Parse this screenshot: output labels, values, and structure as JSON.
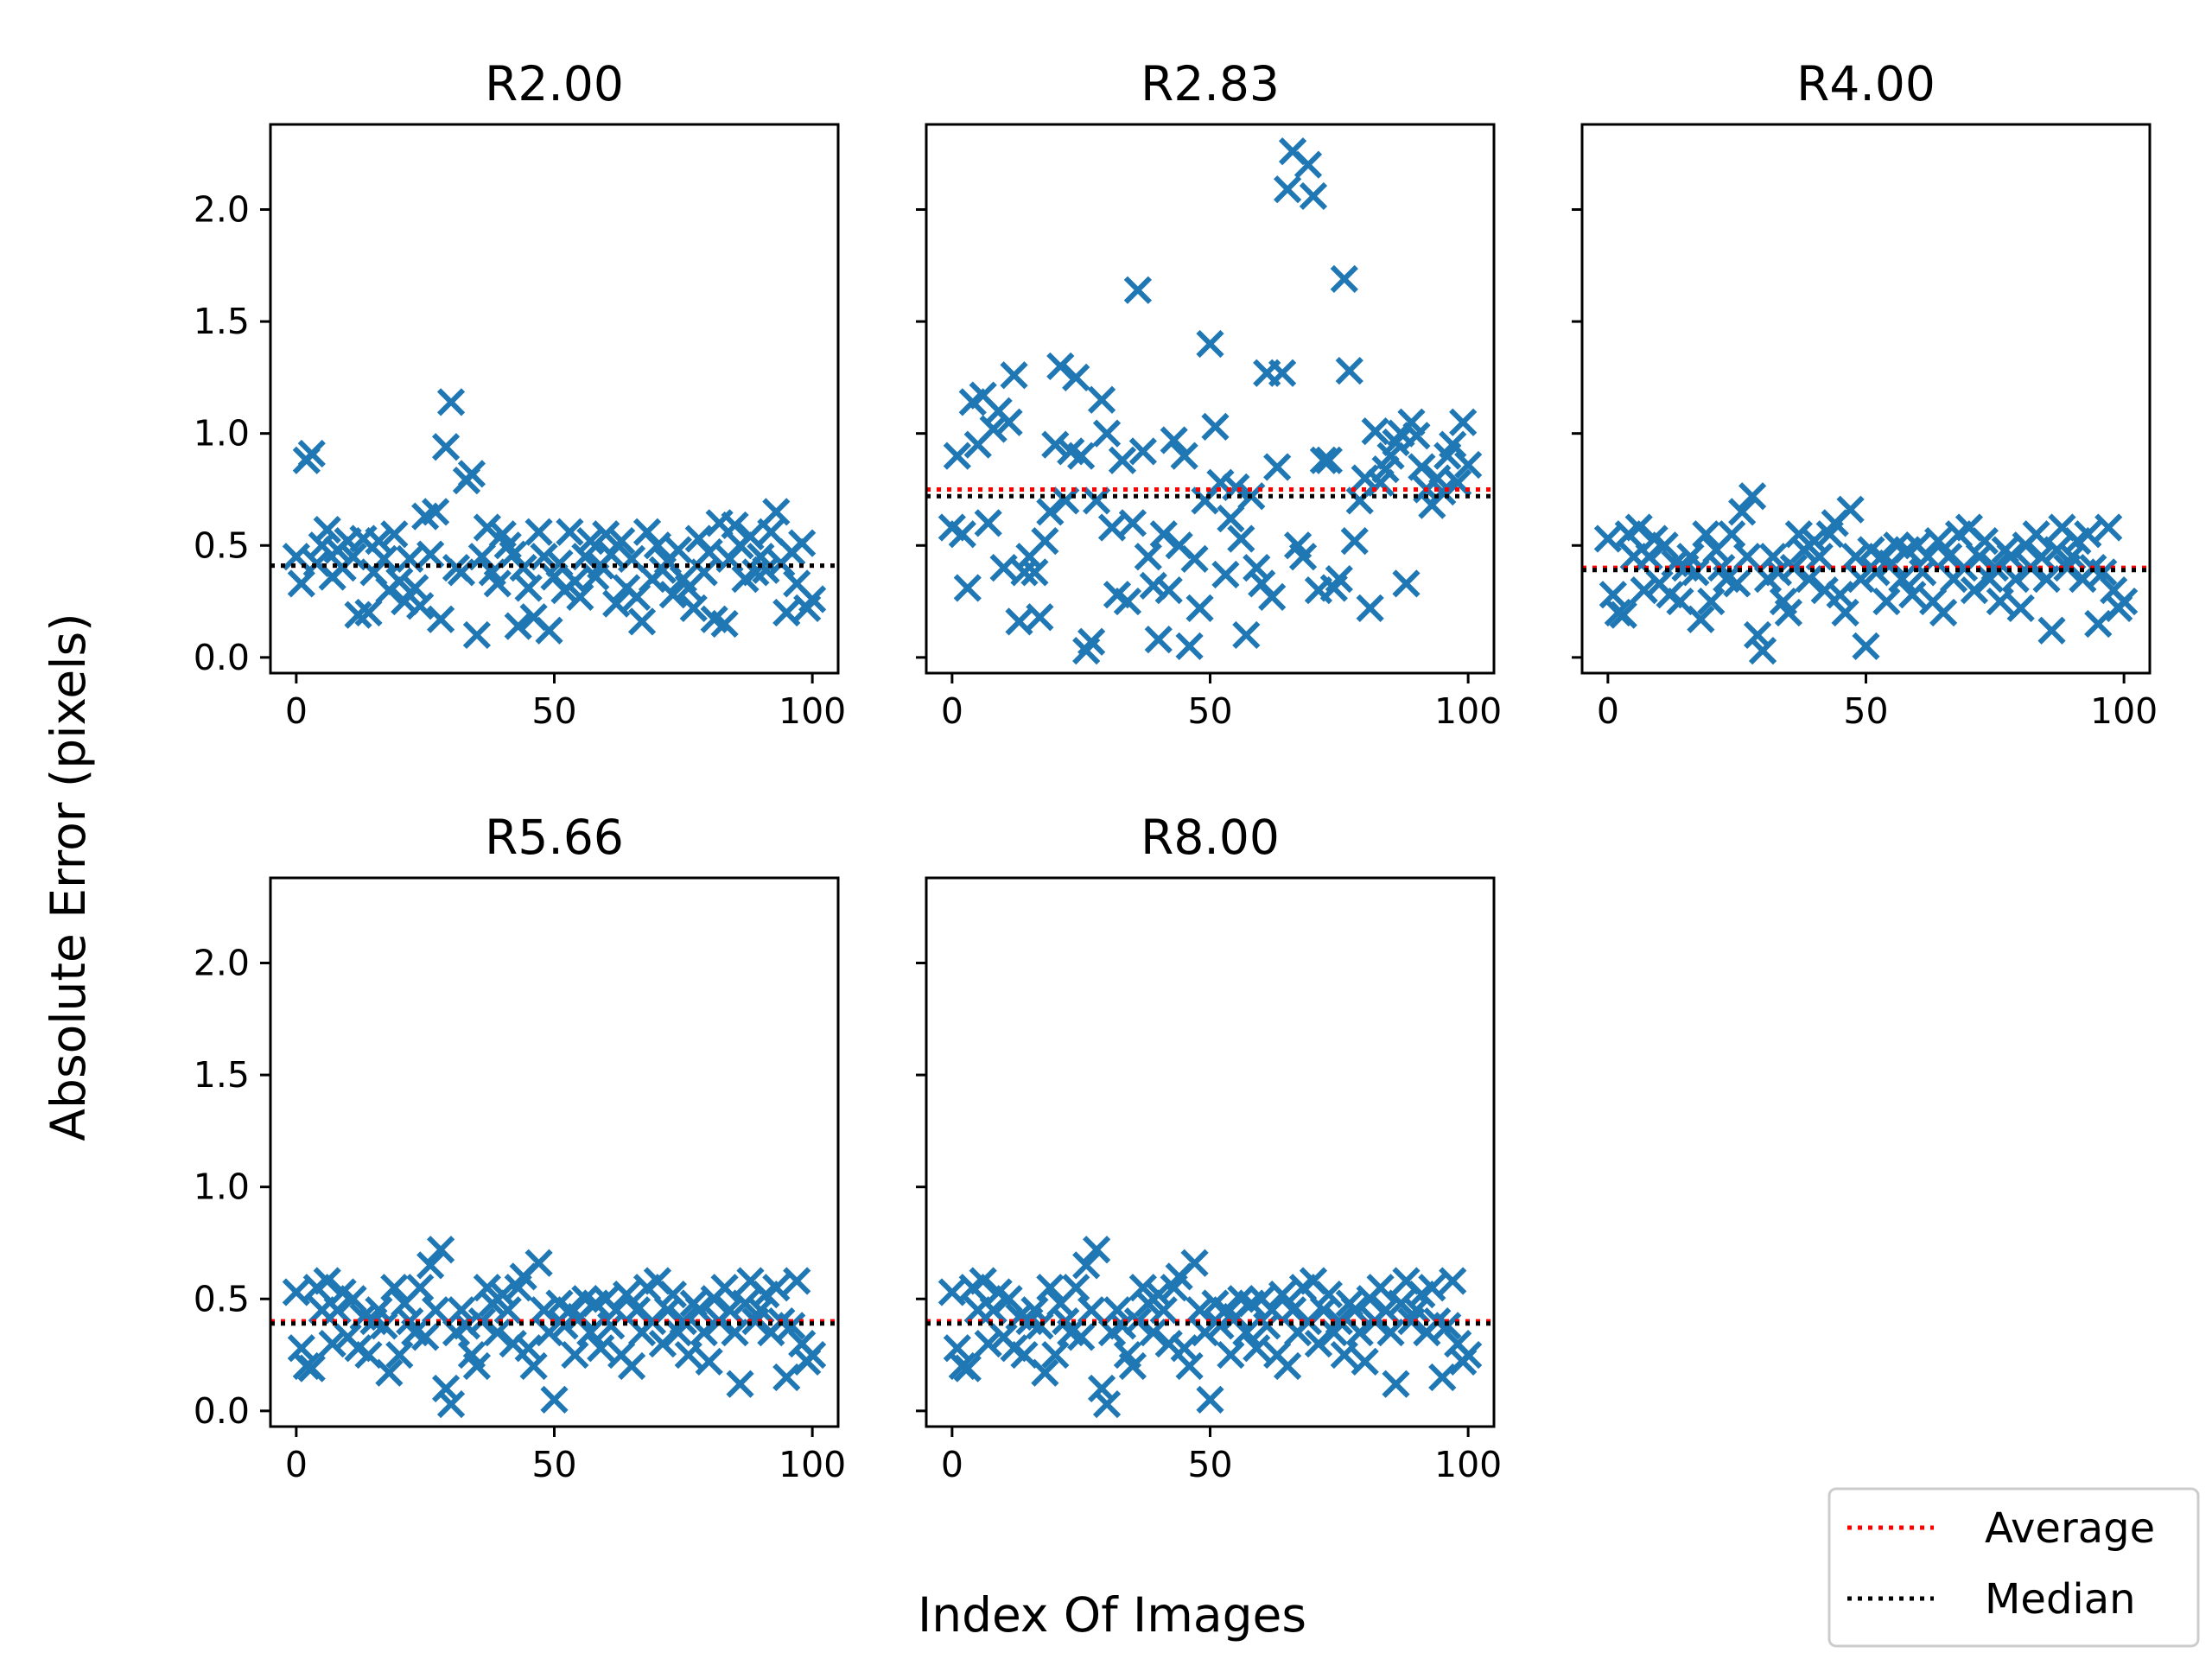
{
  "figure": {
    "xlabel": "Index Of Images",
    "ylabel": "Absolute Error (pixels)",
    "legend": {
      "placement": "bottom-right",
      "entries": [
        {
          "label": "Average",
          "color": "#ff0000",
          "style": "dotted"
        },
        {
          "label": "Median",
          "color": "#000000",
          "style": "dotted"
        }
      ]
    },
    "marker_color": "#1f77b4"
  },
  "chart_data": [
    {
      "type": "scatter",
      "title": "R2.00",
      "xlim": [
        -5,
        105
      ],
      "ylim": [
        -0.07,
        2.38
      ],
      "xticks": [
        0,
        50,
        100
      ],
      "yticks": [
        0.0,
        0.5,
        1.0,
        1.5,
        2.0
      ],
      "xtick_labels": [
        "0",
        "50",
        "100"
      ],
      "ytick_labels": [
        "0.0",
        "0.5",
        "1.0",
        "1.5",
        "2.0"
      ],
      "average": 0.41,
      "median": 0.41,
      "x": [
        0,
        1,
        2,
        3,
        4,
        5,
        6,
        7,
        8,
        9,
        10,
        11,
        12,
        13,
        14,
        15,
        16,
        17,
        18,
        19,
        20,
        21,
        22,
        23,
        24,
        25,
        26,
        27,
        28,
        29,
        30,
        31,
        32,
        33,
        34,
        35,
        36,
        37,
        38,
        39,
        40,
        41,
        42,
        43,
        44,
        45,
        46,
        47,
        48,
        49,
        50,
        51,
        52,
        53,
        54,
        55,
        56,
        57,
        58,
        59,
        60,
        61,
        62,
        63,
        64,
        65,
        66,
        67,
        68,
        69,
        70,
        71,
        72,
        73,
        74,
        75,
        76,
        77,
        78,
        79,
        80,
        81,
        82,
        83,
        84,
        85,
        86,
        87,
        88,
        89,
        90,
        91,
        92,
        93,
        94,
        95,
        96,
        97,
        98,
        99,
        100
      ],
      "y": [
        0.45,
        0.33,
        0.88,
        0.91,
        0.42,
        0.5,
        0.57,
        0.36,
        0.48,
        0.4,
        0.52,
        0.45,
        0.19,
        0.53,
        0.2,
        0.38,
        0.52,
        0.44,
        0.3,
        0.55,
        0.34,
        0.25,
        0.44,
        0.31,
        0.23,
        0.63,
        0.46,
        0.65,
        0.17,
        0.94,
        1.14,
        0.4,
        0.38,
        0.79,
        0.82,
        0.1,
        0.45,
        0.58,
        0.38,
        0.33,
        0.55,
        0.5,
        0.46,
        0.14,
        0.4,
        0.31,
        0.18,
        0.56,
        0.45,
        0.12,
        0.36,
        0.42,
        0.3,
        0.56,
        0.34,
        0.27,
        0.45,
        0.52,
        0.36,
        0.41,
        0.55,
        0.46,
        0.24,
        0.52,
        0.31,
        0.44,
        0.27,
        0.16,
        0.56,
        0.35,
        0.5,
        0.39,
        0.43,
        0.28,
        0.48,
        0.35,
        0.31,
        0.22,
        0.53,
        0.38,
        0.47,
        0.17,
        0.6,
        0.15,
        0.44,
        0.59,
        0.5,
        0.35,
        0.54,
        0.38,
        0.45,
        0.39,
        0.56,
        0.65,
        0.42,
        0.2,
        0.47,
        0.33,
        0.51,
        0.22,
        0.26
      ]
    },
    {
      "type": "scatter",
      "title": "R2.83",
      "xlim": [
        -5,
        105
      ],
      "ylim": [
        -0.07,
        2.38
      ],
      "xticks": [
        0,
        50,
        100
      ],
      "yticks": [
        0.0,
        0.5,
        1.0,
        1.5,
        2.0
      ],
      "xtick_labels": [
        "0",
        "50",
        "100"
      ],
      "ytick_labels": [],
      "average": 0.75,
      "median": 0.72,
      "x": [
        0,
        1,
        2,
        3,
        4,
        5,
        6,
        7,
        8,
        9,
        10,
        11,
        12,
        13,
        14,
        15,
        16,
        17,
        18,
        19,
        20,
        21,
        22,
        23,
        24,
        25,
        26,
        27,
        28,
        29,
        30,
        31,
        32,
        33,
        34,
        35,
        36,
        37,
        38,
        39,
        40,
        41,
        42,
        43,
        44,
        45,
        46,
        47,
        48,
        49,
        50,
        51,
        52,
        53,
        54,
        55,
        56,
        57,
        58,
        59,
        60,
        61,
        62,
        63,
        64,
        65,
        66,
        67,
        68,
        69,
        70,
        71,
        72,
        73,
        74,
        75,
        76,
        77,
        78,
        79,
        80,
        81,
        82,
        83,
        84,
        85,
        86,
        87,
        88,
        89,
        90,
        91,
        92,
        93,
        94,
        95,
        96,
        97,
        98,
        99,
        100
      ],
      "y": [
        0.58,
        0.9,
        0.55,
        0.31,
        1.14,
        0.95,
        1.17,
        0.6,
        1.02,
        1.1,
        0.4,
        1.05,
        1.26,
        0.16,
        0.38,
        0.45,
        0.38,
        0.18,
        0.52,
        0.65,
        0.95,
        1.3,
        0.7,
        0.92,
        1.25,
        0.9,
        0.03,
        0.07,
        0.7,
        1.15,
        1.0,
        0.58,
        0.28,
        0.88,
        0.25,
        0.6,
        1.64,
        0.92,
        0.45,
        0.32,
        0.08,
        0.55,
        0.3,
        0.97,
        0.5,
        0.9,
        0.05,
        0.44,
        0.22,
        0.7,
        1.4,
        1.03,
        0.78,
        0.37,
        0.62,
        0.76,
        0.53,
        0.1,
        0.72,
        0.4,
        0.33,
        1.27,
        0.27,
        0.85,
        1.27,
        2.09,
        2.26,
        0.5,
        0.45,
        2.2,
        2.06,
        0.3,
        0.88,
        0.88,
        0.31,
        0.35,
        1.69,
        1.28,
        0.52,
        0.7,
        0.8,
        0.22,
        1.01,
        0.78,
        0.84,
        0.9,
        0.96,
        1.0,
        0.33,
        1.05,
        0.99,
        0.85,
        0.75,
        0.68,
        0.8,
        0.74,
        0.9,
        0.95,
        0.78,
        1.05,
        0.86
      ]
    },
    {
      "type": "scatter",
      "title": "R4.00",
      "xlim": [
        -5,
        105
      ],
      "ylim": [
        -0.07,
        2.38
      ],
      "xticks": [
        0,
        50,
        100
      ],
      "yticks": [
        0.0,
        0.5,
        1.0,
        1.5,
        2.0
      ],
      "xtick_labels": [
        "0",
        "50",
        "100"
      ],
      "ytick_labels": [],
      "average": 0.4,
      "median": 0.39,
      "x": [
        0,
        1,
        2,
        3,
        4,
        5,
        6,
        7,
        8,
        9,
        10,
        11,
        12,
        13,
        14,
        15,
        16,
        17,
        18,
        19,
        20,
        21,
        22,
        23,
        24,
        25,
        26,
        27,
        28,
        29,
        30,
        31,
        32,
        33,
        34,
        35,
        36,
        37,
        38,
        39,
        40,
        41,
        42,
        43,
        44,
        45,
        46,
        47,
        48,
        49,
        50,
        51,
        52,
        53,
        54,
        55,
        56,
        57,
        58,
        59,
        60,
        61,
        62,
        63,
        64,
        65,
        66,
        67,
        68,
        69,
        70,
        71,
        72,
        73,
        74,
        75,
        76,
        77,
        78,
        79,
        80,
        81,
        82,
        83,
        84,
        85,
        86,
        87,
        88,
        89,
        90,
        91,
        92,
        93,
        94,
        95,
        96,
        97,
        98,
        99,
        100
      ],
      "y": [
        0.53,
        0.28,
        0.2,
        0.19,
        0.55,
        0.45,
        0.58,
        0.3,
        0.45,
        0.53,
        0.33,
        0.5,
        0.28,
        0.42,
        0.25,
        0.4,
        0.45,
        0.38,
        0.17,
        0.55,
        0.25,
        0.48,
        0.4,
        0.35,
        0.55,
        0.33,
        0.65,
        0.45,
        0.72,
        0.1,
        0.03,
        0.35,
        0.45,
        0.38,
        0.25,
        0.2,
        0.4,
        0.55,
        0.48,
        0.35,
        0.52,
        0.45,
        0.3,
        0.55,
        0.6,
        0.28,
        0.2,
        0.66,
        0.45,
        0.35,
        0.05,
        0.48,
        0.38,
        0.45,
        0.25,
        0.42,
        0.5,
        0.35,
        0.48,
        0.28,
        0.5,
        0.38,
        0.45,
        0.25,
        0.52,
        0.2,
        0.45,
        0.35,
        0.55,
        0.4,
        0.58,
        0.3,
        0.45,
        0.52,
        0.35,
        0.4,
        0.25,
        0.48,
        0.45,
        0.35,
        0.22,
        0.5,
        0.4,
        0.55,
        0.45,
        0.35,
        0.12,
        0.48,
        0.58,
        0.4,
        0.45,
        0.52,
        0.35,
        0.55,
        0.4,
        0.15,
        0.38,
        0.58,
        0.3,
        0.22,
        0.25
      ]
    },
    {
      "type": "scatter",
      "title": "R5.66",
      "xlim": [
        -5,
        105
      ],
      "ylim": [
        -0.07,
        2.38
      ],
      "xticks": [
        0,
        50,
        100
      ],
      "yticks": [
        0.0,
        0.5,
        1.0,
        1.5,
        2.0
      ],
      "xtick_labels": [
        "0",
        "50",
        "100"
      ],
      "ytick_labels": [
        "0.0",
        "0.5",
        "1.0",
        "1.5",
        "2.0"
      ],
      "average": 0.4,
      "median": 0.39,
      "x": [
        0,
        1,
        2,
        3,
        4,
        5,
        6,
        7,
        8,
        9,
        10,
        11,
        12,
        13,
        14,
        15,
        16,
        17,
        18,
        19,
        20,
        21,
        22,
        23,
        24,
        25,
        26,
        27,
        28,
        29,
        30,
        31,
        32,
        33,
        34,
        35,
        36,
        37,
        38,
        39,
        40,
        41,
        42,
        43,
        44,
        45,
        46,
        47,
        48,
        49,
        50,
        51,
        52,
        53,
        54,
        55,
        56,
        57,
        58,
        59,
        60,
        61,
        62,
        63,
        64,
        65,
        66,
        67,
        68,
        69,
        70,
        71,
        72,
        73,
        74,
        75,
        76,
        77,
        78,
        79,
        80,
        81,
        82,
        83,
        84,
        85,
        86,
        87,
        88,
        89,
        90,
        91,
        92,
        93,
        94,
        95,
        96,
        97,
        98,
        99,
        100
      ],
      "y": [
        0.53,
        0.28,
        0.2,
        0.19,
        0.55,
        0.45,
        0.58,
        0.3,
        0.45,
        0.53,
        0.33,
        0.5,
        0.28,
        0.42,
        0.25,
        0.4,
        0.45,
        0.38,
        0.17,
        0.55,
        0.25,
        0.48,
        0.4,
        0.35,
        0.55,
        0.33,
        0.65,
        0.45,
        0.72,
        0.1,
        0.03,
        0.35,
        0.45,
        0.38,
        0.25,
        0.2,
        0.4,
        0.55,
        0.48,
        0.35,
        0.52,
        0.45,
        0.3,
        0.55,
        0.6,
        0.28,
        0.2,
        0.66,
        0.45,
        0.35,
        0.05,
        0.48,
        0.38,
        0.45,
        0.25,
        0.42,
        0.5,
        0.35,
        0.48,
        0.28,
        0.5,
        0.38,
        0.45,
        0.25,
        0.52,
        0.2,
        0.45,
        0.35,
        0.55,
        0.4,
        0.58,
        0.3,
        0.45,
        0.52,
        0.35,
        0.4,
        0.25,
        0.48,
        0.45,
        0.35,
        0.22,
        0.5,
        0.4,
        0.55,
        0.45,
        0.35,
        0.12,
        0.48,
        0.58,
        0.4,
        0.45,
        0.52,
        0.35,
        0.55,
        0.4,
        0.15,
        0.38,
        0.58,
        0.3,
        0.22,
        0.25
      ]
    },
    {
      "type": "scatter",
      "title": "R8.00",
      "xlim": [
        -5,
        105
      ],
      "ylim": [
        -0.07,
        2.38
      ],
      "xticks": [
        0,
        50,
        100
      ],
      "yticks": [
        0.0,
        0.5,
        1.0,
        1.5,
        2.0
      ],
      "xtick_labels": [
        "0",
        "50",
        "100"
      ],
      "ytick_labels": [],
      "average": 0.4,
      "median": 0.39,
      "x": [
        0,
        1,
        2,
        3,
        4,
        5,
        6,
        7,
        8,
        9,
        10,
        11,
        12,
        13,
        14,
        15,
        16,
        17,
        18,
        19,
        20,
        21,
        22,
        23,
        24,
        25,
        26,
        27,
        28,
        29,
        30,
        31,
        32,
        33,
        34,
        35,
        36,
        37,
        38,
        39,
        40,
        41,
        42,
        43,
        44,
        45,
        46,
        47,
        48,
        49,
        50,
        51,
        52,
        53,
        54,
        55,
        56,
        57,
        58,
        59,
        60,
        61,
        62,
        63,
        64,
        65,
        66,
        67,
        68,
        69,
        70,
        71,
        72,
        73,
        74,
        75,
        76,
        77,
        78,
        79,
        80,
        81,
        82,
        83,
        84,
        85,
        86,
        87,
        88,
        89,
        90,
        91,
        92,
        93,
        94,
        95,
        96,
        97,
        98,
        99,
        100
      ],
      "y": [
        0.53,
        0.28,
        0.2,
        0.19,
        0.55,
        0.45,
        0.58,
        0.3,
        0.45,
        0.53,
        0.33,
        0.5,
        0.28,
        0.42,
        0.25,
        0.4,
        0.45,
        0.38,
        0.17,
        0.55,
        0.25,
        0.48,
        0.4,
        0.35,
        0.55,
        0.33,
        0.65,
        0.45,
        0.72,
        0.1,
        0.03,
        0.35,
        0.45,
        0.38,
        0.25,
        0.2,
        0.4,
        0.55,
        0.48,
        0.35,
        0.52,
        0.45,
        0.3,
        0.55,
        0.6,
        0.28,
        0.2,
        0.66,
        0.45,
        0.35,
        0.05,
        0.48,
        0.38,
        0.45,
        0.25,
        0.42,
        0.5,
        0.35,
        0.48,
        0.28,
        0.5,
        0.38,
        0.45,
        0.25,
        0.52,
        0.2,
        0.45,
        0.35,
        0.55,
        0.4,
        0.58,
        0.3,
        0.45,
        0.52,
        0.35,
        0.4,
        0.25,
        0.48,
        0.45,
        0.35,
        0.22,
        0.5,
        0.4,
        0.55,
        0.45,
        0.35,
        0.12,
        0.48,
        0.58,
        0.4,
        0.45,
        0.52,
        0.35,
        0.55,
        0.4,
        0.15,
        0.38,
        0.58,
        0.3,
        0.22,
        0.25
      ]
    }
  ]
}
